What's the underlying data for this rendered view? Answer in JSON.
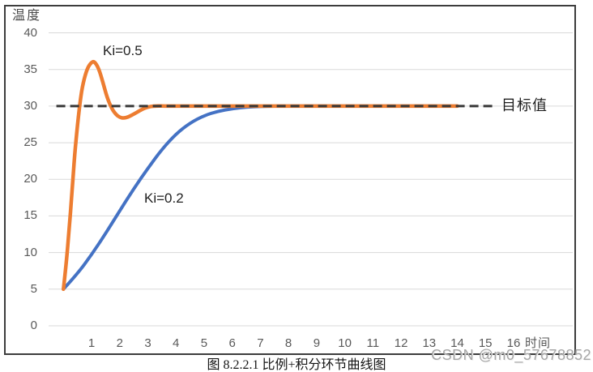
{
  "chart": {
    "y_axis_title": "温度",
    "x_axis_title": "时间",
    "annotations": {
      "ki05": "Ki=0.5",
      "ki02": "Ki=0.2",
      "target": "目标值"
    }
  },
  "chart_data": {
    "type": "line",
    "title": "",
    "xlabel": "时间",
    "ylabel": "温度",
    "xlim": [
      0,
      17
    ],
    "ylim": [
      0,
      40
    ],
    "grid": "horizontal",
    "legend_position": "inline-annotations",
    "y_tick_values": [
      40,
      35,
      30,
      25,
      20,
      15,
      10,
      5,
      0
    ],
    "x_tick_values": [
      1,
      2,
      3,
      4,
      5,
      6,
      7,
      8,
      9,
      10,
      11,
      12,
      13,
      14,
      15,
      16
    ],
    "target_line": {
      "value": 30,
      "label": "目标值",
      "style": "dashed",
      "x_start": -0.25,
      "x_end": 15.3
    },
    "series": [
      {
        "name": "Ki=0.2",
        "color": "#4472C4",
        "x": [
          0,
          0.5,
          1,
          1.5,
          2,
          2.5,
          3,
          3.5,
          4,
          4.5,
          5,
          5.5,
          6,
          6.5,
          7,
          7.5,
          8,
          14
        ],
        "y": [
          5,
          7.1,
          9.7,
          12.6,
          15.7,
          18.7,
          21.5,
          24.1,
          26.2,
          27.7,
          28.7,
          29.3,
          29.65,
          29.85,
          29.95,
          30,
          30,
          30
        ]
      },
      {
        "name": "Ki=0.5",
        "color": "#ED7D31",
        "x": [
          0,
          0.1,
          0.2,
          0.3,
          0.4,
          0.5,
          0.6,
          0.7,
          0.85,
          1.0,
          1.1,
          1.25,
          1.4,
          1.55,
          1.7,
          1.85,
          2.0,
          2.15,
          2.3,
          2.5,
          2.7,
          2.9,
          3.1,
          3.3,
          3.6,
          4,
          14
        ],
        "y": [
          5,
          8.5,
          13,
          18,
          23.5,
          27.5,
          30.8,
          33.2,
          35.2,
          36,
          36.1,
          35.2,
          33.3,
          31.2,
          29.8,
          28.9,
          28.45,
          28.35,
          28.5,
          28.9,
          29.35,
          29.75,
          29.95,
          30.02,
          30,
          30,
          30
        ]
      }
    ]
  },
  "colors": {
    "series_ki05": "#ED7D31",
    "series_ki02": "#4472C4",
    "target_line": "#383838",
    "gridline": "#D9D9D9",
    "frame": "#3d3d3d"
  },
  "caption": "图 8.2.2.1 比例+积分环节曲线图",
  "watermark": "CSDN @m0_57678852"
}
